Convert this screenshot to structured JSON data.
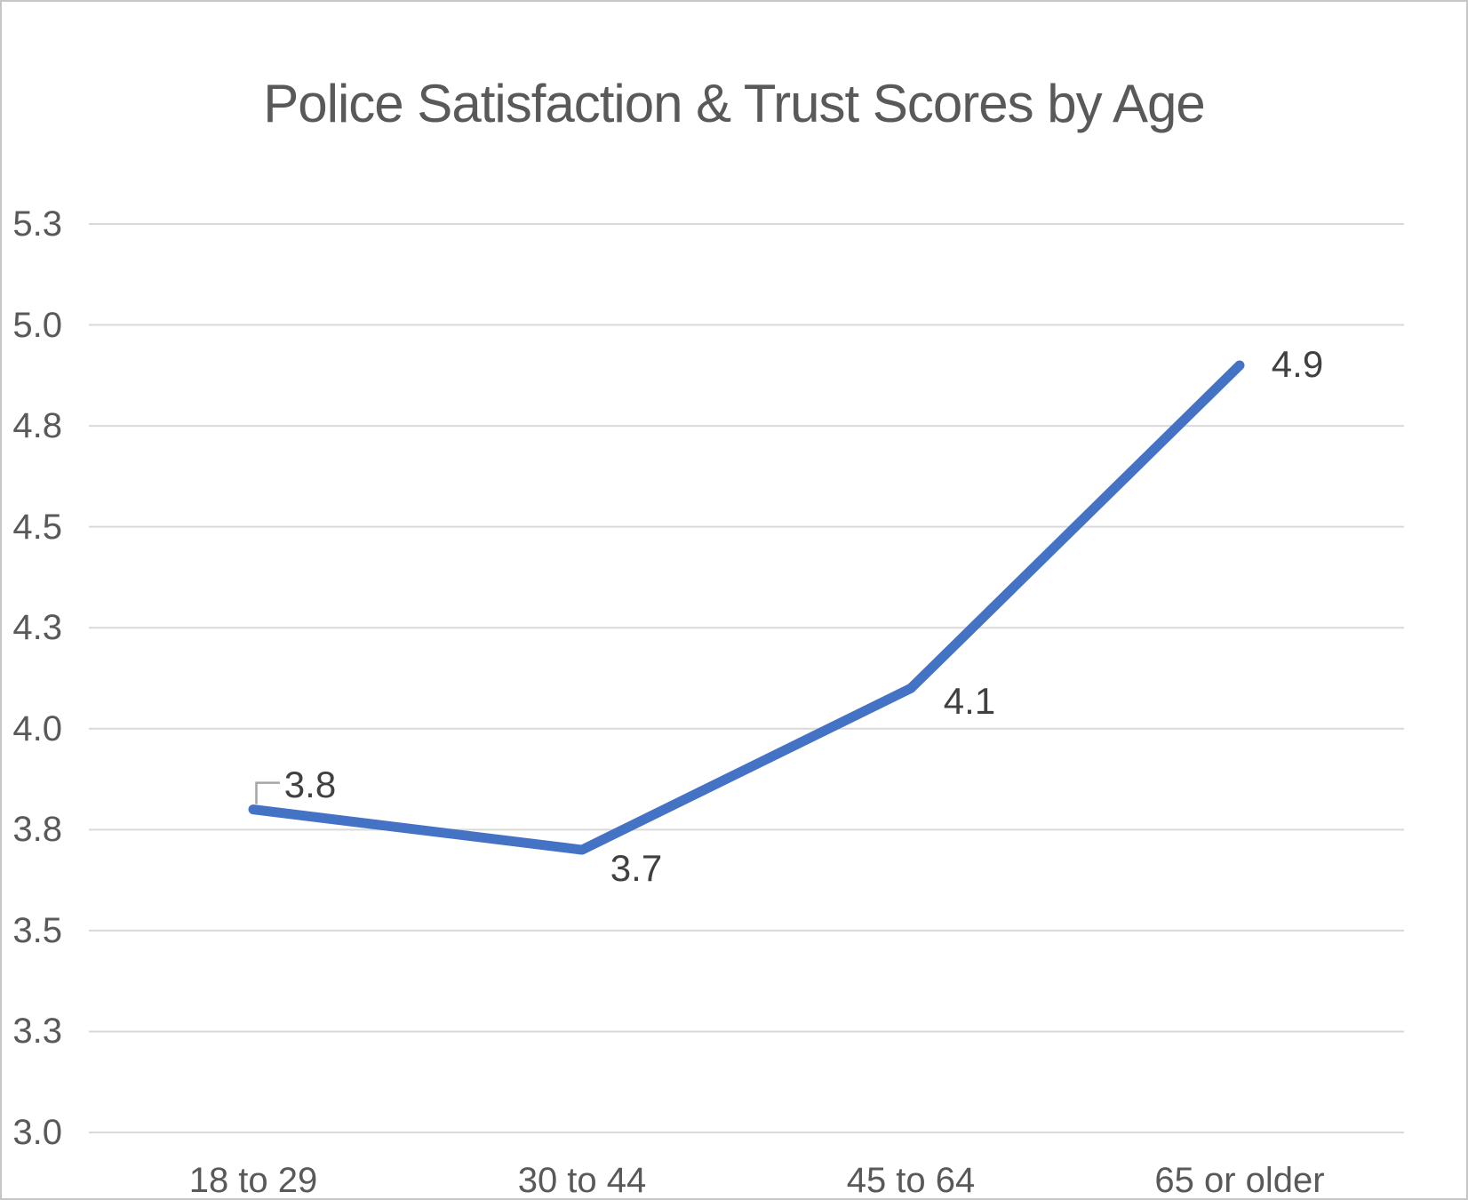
{
  "chart_data": {
    "type": "line",
    "title": "Police Satisfaction & Trust Scores by Age",
    "categories": [
      "18 to 29",
      "30 to 44",
      "45 to 64",
      "65 or older"
    ],
    "values": [
      3.8,
      3.7,
      4.1,
      4.9
    ],
    "data_labels": [
      "3.8",
      "3.7",
      "4.1",
      "4.9"
    ],
    "xlabel": "",
    "ylabel": "",
    "ylim": [
      3.0,
      5.25
    ],
    "y_ticks": {
      "values": [
        3.0,
        3.25,
        3.5,
        3.75,
        4.0,
        4.25,
        4.5,
        4.75,
        5.0,
        5.25
      ],
      "labels": [
        "3.0",
        "3.3",
        "3.5",
        "3.8",
        "4.0",
        "4.3",
        "4.5",
        "4.8",
        "5.0",
        "5.3"
      ]
    },
    "grid": true,
    "legend": "none",
    "first_label_has_leader_line": true,
    "colors": {
      "line": "#4472C4",
      "title": "#595959",
      "axis_labels": "#595959",
      "data_labels": "#404040",
      "gridline": "#D9D9D9",
      "leader": "#A6A6A6",
      "background": "#FFFFFF",
      "frame_border": "#C6C6C6"
    }
  }
}
